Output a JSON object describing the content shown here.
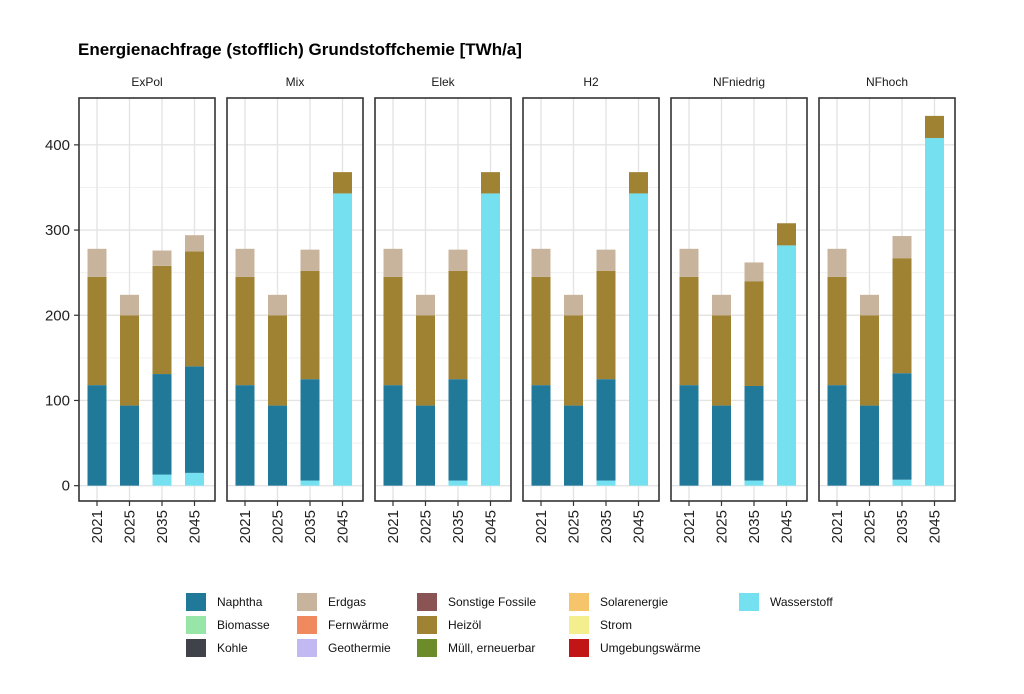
{
  "chart_data": {
    "type": "bar",
    "stacked": true,
    "title": "Energienachfrage (stofflich) Grundstoffchemie [TWh/a]",
    "xlabel": "",
    "ylabel": "",
    "ylim": [
      -18,
      455
    ],
    "yticks": [
      0,
      100,
      200,
      300,
      400
    ],
    "grid": true,
    "legend_position": "bottom",
    "categories": [
      "2021",
      "2025",
      "2035",
      "2045"
    ],
    "legend": [
      {
        "name": "Naphtha",
        "color": "#21799a"
      },
      {
        "name": "Biomasse",
        "color": "#97e6a7"
      },
      {
        "name": "Kohle",
        "color": "#3f4248"
      },
      {
        "name": "Erdgas",
        "color": "#c8b49c"
      },
      {
        "name": "Fernwärme",
        "color": "#f08a5e"
      },
      {
        "name": "Geothermie",
        "color": "#c2b9f2"
      },
      {
        "name": "Sonstige Fossile",
        "color": "#8a5454"
      },
      {
        "name": "Heizöl",
        "color": "#a08233"
      },
      {
        "name": "Müll, erneuerbar",
        "color": "#6c8c2a"
      },
      {
        "name": "Solarenergie",
        "color": "#f6c46b"
      },
      {
        "name": "Strom",
        "color": "#f3ee8e"
      },
      {
        "name": "Umgebungswärme",
        "color": "#c21616"
      },
      {
        "name": "Wasserstoff",
        "color": "#75e0f0"
      }
    ],
    "stack_order": [
      "Wasserstoff",
      "Naphtha",
      "Heizöl",
      "Erdgas"
    ],
    "panels": [
      {
        "name": "ExPol",
        "series": [
          {
            "name": "Wasserstoff",
            "values": [
              0,
              0,
              13,
              15
            ]
          },
          {
            "name": "Naphtha",
            "values": [
              118,
              94,
              118,
              125
            ]
          },
          {
            "name": "Heizöl",
            "values": [
              127,
              106,
              127,
              135
            ]
          },
          {
            "name": "Erdgas",
            "values": [
              33,
              24,
              18,
              19
            ]
          }
        ]
      },
      {
        "name": "Mix",
        "series": [
          {
            "name": "Wasserstoff",
            "values": [
              0,
              0,
              6,
              343
            ]
          },
          {
            "name": "Naphtha",
            "values": [
              118,
              94,
              119,
              0
            ]
          },
          {
            "name": "Heizöl",
            "values": [
              127,
              106,
              127,
              25
            ]
          },
          {
            "name": "Erdgas",
            "values": [
              33,
              24,
              25,
              0
            ]
          }
        ]
      },
      {
        "name": "Elek",
        "series": [
          {
            "name": "Wasserstoff",
            "values": [
              0,
              0,
              6,
              343
            ]
          },
          {
            "name": "Naphtha",
            "values": [
              118,
              94,
              119,
              0
            ]
          },
          {
            "name": "Heizöl",
            "values": [
              127,
              106,
              127,
              25
            ]
          },
          {
            "name": "Erdgas",
            "values": [
              33,
              24,
              25,
              0
            ]
          }
        ]
      },
      {
        "name": "H2",
        "series": [
          {
            "name": "Wasserstoff",
            "values": [
              0,
              0,
              6,
              343
            ]
          },
          {
            "name": "Naphtha",
            "values": [
              118,
              94,
              119,
              0
            ]
          },
          {
            "name": "Heizöl",
            "values": [
              127,
              106,
              127,
              25
            ]
          },
          {
            "name": "Erdgas",
            "values": [
              33,
              24,
              25,
              0
            ]
          }
        ]
      },
      {
        "name": "NFniedrig",
        "series": [
          {
            "name": "Wasserstoff",
            "values": [
              0,
              0,
              6,
              282
            ]
          },
          {
            "name": "Naphtha",
            "values": [
              118,
              94,
              111,
              0
            ]
          },
          {
            "name": "Heizöl",
            "values": [
              127,
              106,
              123,
              26
            ]
          },
          {
            "name": "Erdgas",
            "values": [
              33,
              24,
              22,
              0
            ]
          }
        ]
      },
      {
        "name": "NFhoch",
        "series": [
          {
            "name": "Wasserstoff",
            "values": [
              0,
              0,
              7,
              408
            ]
          },
          {
            "name": "Naphtha",
            "values": [
              118,
              94,
              125,
              0
            ]
          },
          {
            "name": "Heizöl",
            "values": [
              127,
              106,
              135,
              26
            ]
          },
          {
            "name": "Erdgas",
            "values": [
              33,
              24,
              26,
              0
            ]
          }
        ]
      }
    ]
  }
}
